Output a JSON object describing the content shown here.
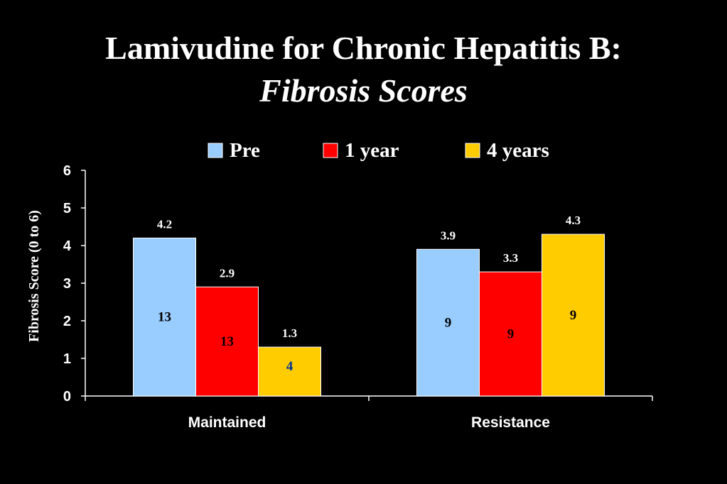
{
  "chart_data": {
    "type": "bar",
    "title": "Lamivudine for Chronic Hepatitis B:",
    "subtitle": "Fibrosis Scores",
    "xlabel": "",
    "ylabel": "Fibrosis Score (0 to 6)",
    "ylim": [
      0,
      6
    ],
    "yticks": [
      "0",
      "1",
      "2",
      "3",
      "4",
      "5",
      "6"
    ],
    "categories": [
      "Maintained",
      "Resistance"
    ],
    "series": [
      {
        "name": "Pre",
        "color": "#99CCFF",
        "values": [
          4.2,
          3.9
        ],
        "value_labels": [
          "4.2",
          "3.9"
        ],
        "n": [
          "13",
          "9"
        ],
        "n_colors": [
          "#000000",
          "#000000"
        ]
      },
      {
        "name": "1 year",
        "color": "#FF0000",
        "values": [
          2.9,
          3.3
        ],
        "value_labels": [
          "2.9",
          "3.3"
        ],
        "n": [
          "13",
          "9"
        ],
        "n_colors": [
          "#000000",
          "#000000"
        ]
      },
      {
        "name": "4 years",
        "color": "#FFCC00",
        "values": [
          1.3,
          4.3
        ],
        "value_labels": [
          "1.3",
          "4.3"
        ],
        "n": [
          "4",
          "9"
        ],
        "n_colors": [
          "#003399",
          "#000000"
        ]
      }
    ],
    "legend_position": "top",
    "grid": false
  }
}
